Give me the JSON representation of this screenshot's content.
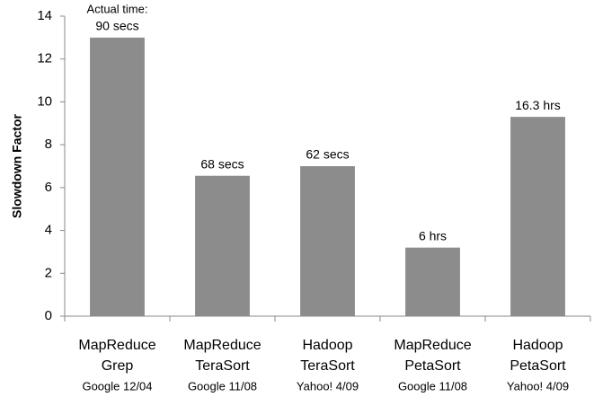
{
  "chart_data": {
    "type": "bar",
    "y_label": "Slowdown Factor",
    "categories": [
      [
        "MapReduce",
        "Grep",
        "Google 12/04"
      ],
      [
        "MapReduce",
        "TeraSort",
        "Google 11/08"
      ],
      [
        "Hadoop",
        "TeraSort",
        "Yahoo! 4/09"
      ],
      [
        "MapReduce",
        "PetaSort",
        "Google 11/08"
      ],
      [
        "Hadoop",
        "PetaSort",
        "Yahoo! 4/09"
      ]
    ],
    "values": [
      13,
      6.55,
      7,
      3.2,
      9.3
    ],
    "annotation_title": "Actual time:",
    "annotations": [
      "90 secs",
      "68 secs",
      "62 secs",
      "6 hrs",
      "16.3 hrs"
    ],
    "color": "#8c8c8c",
    "ylim": [
      0,
      14
    ],
    "yticks": [
      0,
      2,
      4,
      6,
      8,
      10,
      12,
      14
    ],
    "grid": false
  }
}
